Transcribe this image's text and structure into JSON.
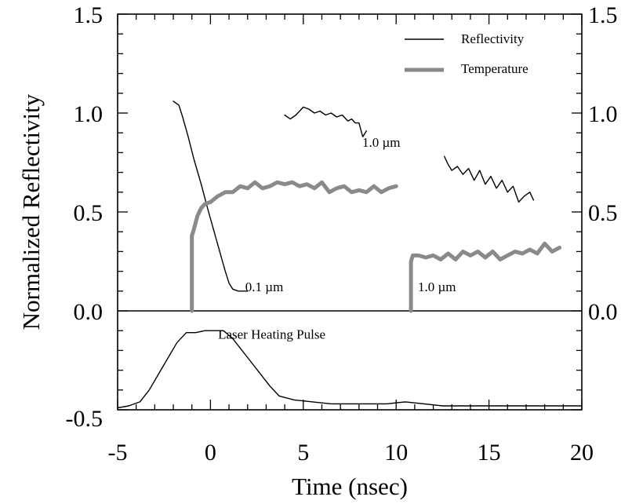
{
  "chart_data": {
    "type": "line",
    "xlabel": "Time (nsec)",
    "ylabel": "Normalized Reflectivity",
    "xlim": [
      -5,
      20
    ],
    "ylim": [
      -0.5,
      1.5
    ],
    "x_ticks": [
      "-5",
      "0",
      "5",
      "10",
      "15",
      "20"
    ],
    "y_ticks": [
      "-0.5",
      "0.0",
      "0.5",
      "1.0",
      "1.5"
    ],
    "y_right_ticks": [
      "0.0",
      "0.5",
      "1.0",
      "1.5"
    ],
    "legend": {
      "position": "top-right",
      "entries": [
        {
          "name": "Reflectivity",
          "style": "thin"
        },
        {
          "name": "Temperature",
          "style": "thick"
        }
      ]
    },
    "annotations": [
      {
        "text": "1.0 µm",
        "x": 9.2,
        "y": 0.83
      },
      {
        "text": "0.1 µm",
        "x": 2.9,
        "y": 0.1
      },
      {
        "text": "1.0 µm",
        "x": 12.2,
        "y": 0.1
      },
      {
        "text": "Laser Heating Pulse",
        "x": 3.3,
        "y": -0.14
      }
    ],
    "series": [
      {
        "style": "thin",
        "x": [
          -2.0,
          -1.7,
          -1.5,
          -1.2,
          -0.9,
          -0.5,
          -0.1,
          0.2,
          0.5,
          0.8,
          1.0,
          1.2,
          1.5,
          1.8,
          2.0
        ],
        "y": [
          1.06,
          1.04,
          0.98,
          0.88,
          0.77,
          0.64,
          0.5,
          0.4,
          0.3,
          0.2,
          0.14,
          0.11,
          0.1,
          0.1,
          0.1
        ]
      },
      {
        "style": "thin",
        "x": [
          4.0,
          4.3,
          4.6,
          4.8,
          5.0,
          5.3,
          5.6,
          5.9,
          6.2,
          6.5,
          6.8,
          7.1,
          7.4,
          7.6,
          7.8,
          8.0,
          8.2,
          8.4
        ],
        "y": [
          0.99,
          0.97,
          0.99,
          1.01,
          1.03,
          1.02,
          1.0,
          1.01,
          0.99,
          1.0,
          0.98,
          0.99,
          0.96,
          0.97,
          0.95,
          0.95,
          0.88,
          0.91
        ]
      },
      {
        "style": "thin",
        "x": [
          12.6,
          12.8,
          13.0,
          13.3,
          13.6,
          13.9,
          14.2,
          14.5,
          14.8,
          15.1,
          15.4,
          15.7,
          16.0,
          16.3,
          16.6,
          16.9,
          17.2,
          17.4
        ],
        "y": [
          0.78,
          0.74,
          0.71,
          0.73,
          0.69,
          0.72,
          0.66,
          0.71,
          0.64,
          0.68,
          0.62,
          0.66,
          0.6,
          0.63,
          0.55,
          0.58,
          0.6,
          0.56
        ]
      },
      {
        "style": "thick",
        "x": [
          -1.0,
          -1.0,
          -0.9,
          -0.7,
          -0.5,
          -0.3,
          0.0,
          0.4,
          0.8,
          1.2,
          1.6,
          2.0,
          2.4,
          2.8,
          3.2,
          3.6,
          4.0,
          4.4,
          4.8,
          5.2,
          5.6,
          6.0,
          6.4,
          6.8,
          7.2,
          7.6,
          8.0,
          8.4,
          8.8,
          9.2,
          9.6,
          10.0
        ],
        "y": [
          0.0,
          0.38,
          0.41,
          0.48,
          0.52,
          0.54,
          0.55,
          0.58,
          0.6,
          0.6,
          0.63,
          0.62,
          0.65,
          0.62,
          0.63,
          0.65,
          0.64,
          0.65,
          0.63,
          0.64,
          0.62,
          0.65,
          0.6,
          0.62,
          0.63,
          0.6,
          0.61,
          0.6,
          0.63,
          0.6,
          0.62,
          0.63
        ]
      },
      {
        "style": "thick",
        "x": [
          10.8,
          10.8,
          10.9,
          11.2,
          11.6,
          12.0,
          12.4,
          12.8,
          13.2,
          13.6,
          14.0,
          14.4,
          14.8,
          15.2,
          15.6,
          16.0,
          16.4,
          16.8,
          17.2,
          17.6,
          18.0,
          18.4,
          18.8
        ],
        "y": [
          0.0,
          0.25,
          0.28,
          0.28,
          0.27,
          0.28,
          0.26,
          0.29,
          0.26,
          0.3,
          0.28,
          0.3,
          0.27,
          0.3,
          0.26,
          0.28,
          0.3,
          0.29,
          0.31,
          0.29,
          0.34,
          0.3,
          0.32
        ]
      },
      {
        "style": "thin",
        "x": [
          -5.0,
          -4.4,
          -3.8,
          -3.3,
          -2.8,
          -2.3,
          -1.8,
          -1.3,
          -0.8,
          -0.3,
          0.2,
          0.7,
          1.2,
          1.7,
          2.2,
          2.7,
          3.2,
          3.7,
          4.5,
          5.5,
          6.5,
          7.5,
          8.5,
          9.5,
          10.5,
          11.5,
          12.5,
          13.5,
          14.5,
          15.5,
          16.5,
          17.5,
          18.5,
          20.0
        ],
        "y": [
          -0.49,
          -0.48,
          -0.46,
          -0.4,
          -0.32,
          -0.24,
          -0.16,
          -0.11,
          -0.11,
          -0.1,
          -0.1,
          -0.1,
          -0.14,
          -0.2,
          -0.26,
          -0.32,
          -0.38,
          -0.43,
          -0.45,
          -0.46,
          -0.47,
          -0.47,
          -0.47,
          -0.47,
          -0.46,
          -0.47,
          -0.48,
          -0.48,
          -0.48,
          -0.48,
          -0.48,
          -0.48,
          -0.48,
          -0.48
        ]
      }
    ]
  }
}
